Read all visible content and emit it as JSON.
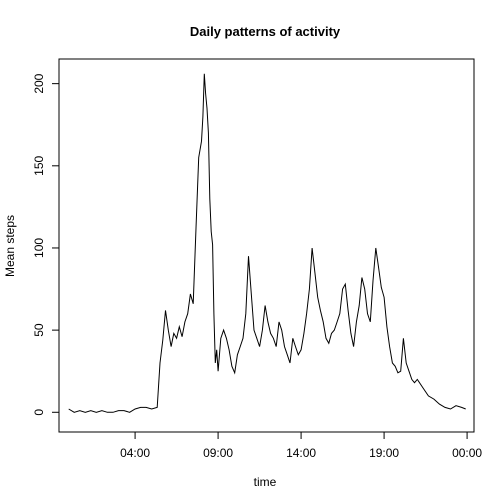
{
  "chart_data": {
    "type": "line",
    "title": "Daily patterns of activity",
    "xlabel": "time",
    "ylabel": "Mean steps",
    "xlim": [
      "23:25",
      "00:25"
    ],
    "ylim": [
      -12,
      215
    ],
    "x_ticks": [
      "04:00",
      "09:00",
      "14:00",
      "19:00",
      "00:00"
    ],
    "y_ticks": [
      0,
      50,
      100,
      150,
      200
    ],
    "grid": false,
    "series": [
      {
        "color": "#000000",
        "x": [
          "00:00",
          "00:20",
          "00:40",
          "01:00",
          "01:20",
          "01:40",
          "02:00",
          "02:20",
          "02:40",
          "03:00",
          "03:20",
          "03:40",
          "04:00",
          "04:20",
          "04:40",
          "05:00",
          "05:20",
          "05:30",
          "05:40",
          "05:50",
          "06:00",
          "06:10",
          "06:20",
          "06:30",
          "06:40",
          "06:50",
          "07:00",
          "07:10",
          "07:20",
          "07:30",
          "07:40",
          "07:50",
          "08:00",
          "08:05",
          "08:10",
          "08:15",
          "08:20",
          "08:25",
          "08:30",
          "08:35",
          "08:40",
          "08:45",
          "08:50",
          "08:55",
          "09:00",
          "09:10",
          "09:20",
          "09:30",
          "09:40",
          "09:50",
          "10:00",
          "10:10",
          "10:20",
          "10:30",
          "10:40",
          "10:50",
          "11:00",
          "11:10",
          "11:20",
          "11:30",
          "11:40",
          "11:50",
          "12:00",
          "12:10",
          "12:20",
          "12:30",
          "12:40",
          "12:50",
          "13:00",
          "13:10",
          "13:20",
          "13:30",
          "13:40",
          "13:50",
          "14:00",
          "14:10",
          "14:20",
          "14:30",
          "14:40",
          "14:50",
          "15:00",
          "15:10",
          "15:20",
          "15:30",
          "15:40",
          "15:50",
          "16:00",
          "16:10",
          "16:20",
          "16:30",
          "16:40",
          "16:50",
          "17:00",
          "17:10",
          "17:20",
          "17:30",
          "17:40",
          "17:50",
          "18:00",
          "18:10",
          "18:20",
          "18:30",
          "18:40",
          "18:50",
          "19:00",
          "19:10",
          "19:20",
          "19:30",
          "19:40",
          "19:50",
          "20:00",
          "20:10",
          "20:20",
          "20:30",
          "20:40",
          "20:50",
          "21:00",
          "21:20",
          "21:40",
          "22:00",
          "22:20",
          "22:40",
          "23:00",
          "23:20",
          "23:40",
          "23:55"
        ],
        "values": [
          2,
          0,
          1,
          0,
          1,
          0,
          1,
          0,
          0,
          1,
          1,
          0,
          2,
          3,
          3,
          2,
          3,
          30,
          44,
          62,
          50,
          40,
          48,
          45,
          52,
          46,
          55,
          60,
          72,
          66,
          112,
          155,
          165,
          180,
          206,
          194,
          185,
          170,
          130,
          110,
          102,
          60,
          30,
          38,
          25,
          45,
          50,
          45,
          38,
          28,
          24,
          35,
          40,
          45,
          60,
          95,
          72,
          50,
          45,
          40,
          50,
          65,
          55,
          48,
          45,
          40,
          55,
          50,
          40,
          35,
          30,
          45,
          40,
          35,
          38,
          48,
          60,
          75,
          100,
          85,
          70,
          62,
          55,
          45,
          42,
          48,
          50,
          55,
          60,
          75,
          78,
          62,
          48,
          40,
          55,
          65,
          82,
          75,
          60,
          55,
          80,
          100,
          88,
          76,
          70,
          52,
          40,
          30,
          28,
          24,
          25,
          45,
          30,
          25,
          20,
          18,
          20,
          15,
          10,
          8,
          5,
          3,
          2,
          4,
          3,
          2
        ]
      }
    ]
  }
}
